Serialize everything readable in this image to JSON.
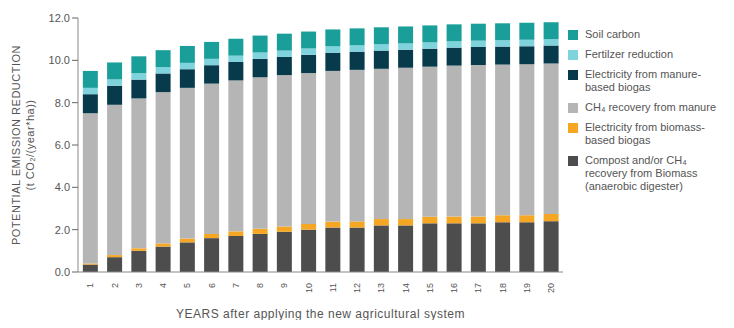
{
  "chart_data": {
    "type": "bar",
    "stacked": true,
    "grid": false,
    "legend": "right",
    "ylabel": [
      "POTENTIAL EMISSION REDUCTION",
      "(t CO₂/(year*ha))"
    ],
    "xlabel": "YEARS after applying the new agricultural system",
    "categories": [
      1,
      2,
      3,
      4,
      5,
      6,
      7,
      8,
      9,
      10,
      11,
      12,
      13,
      14,
      15,
      16,
      17,
      18,
      19,
      20
    ],
    "ylim": [
      0,
      12
    ],
    "yticks": [
      {
        "value": 0,
        "label": "0.0"
      },
      {
        "value": 2,
        "label": "2.0"
      },
      {
        "value": 4,
        "label": "4.0"
      },
      {
        "value": 6,
        "label": "6.0"
      },
      {
        "value": 8,
        "label": "8.0"
      },
      {
        "value": 10,
        "label": "10.0"
      },
      {
        "value": 12,
        "label": "12.0"
      }
    ],
    "series": [
      {
        "name": "Compost and/or CH₄ recovery from Biomass (anaerobic digester)",
        "color": "#4d4d4d",
        "values": [
          0.35,
          0.7,
          1.0,
          1.2,
          1.4,
          1.6,
          1.7,
          1.8,
          1.9,
          2.0,
          2.1,
          2.1,
          2.2,
          2.2,
          2.3,
          2.3,
          2.3,
          2.35,
          2.35,
          2.4
        ]
      },
      {
        "name": "Electricity from biomass-based biogas",
        "color": "#f5a623",
        "values": [
          0.05,
          0.1,
          0.12,
          0.15,
          0.18,
          0.2,
          0.22,
          0.24,
          0.25,
          0.27,
          0.28,
          0.29,
          0.3,
          0.3,
          0.31,
          0.32,
          0.32,
          0.33,
          0.33,
          0.34
        ]
      },
      {
        "name": "CH₄ recovery from manure",
        "color": "#b5b5b5",
        "values": [
          7.1,
          7.1,
          7.08,
          7.15,
          7.12,
          7.1,
          7.13,
          7.16,
          7.15,
          7.13,
          7.12,
          7.16,
          7.1,
          7.15,
          7.09,
          7.13,
          7.16,
          7.12,
          7.14,
          7.11
        ]
      },
      {
        "name": "Electricity from manure-based biogas",
        "color": "#073b4c",
        "values": [
          0.9,
          0.9,
          0.89,
          0.88,
          0.88,
          0.87,
          0.87,
          0.87,
          0.86,
          0.86,
          0.86,
          0.86,
          0.86,
          0.85,
          0.85,
          0.85,
          0.85,
          0.85,
          0.85,
          0.85
        ]
      },
      {
        "name": "Fertilzer reduction",
        "color": "#7fd3dc",
        "values": [
          0.3,
          0.3,
          0.3,
          0.3,
          0.3,
          0.3,
          0.3,
          0.3,
          0.3,
          0.3,
          0.3,
          0.3,
          0.3,
          0.3,
          0.3,
          0.3,
          0.3,
          0.3,
          0.3,
          0.3
        ]
      },
      {
        "name": "Soil carbon",
        "color": "#1a9e9a",
        "values": [
          0.8,
          0.8,
          0.8,
          0.8,
          0.8,
          0.8,
          0.8,
          0.8,
          0.8,
          0.8,
          0.8,
          0.8,
          0.8,
          0.8,
          0.8,
          0.8,
          0.8,
          0.8,
          0.8,
          0.8
        ]
      }
    ]
  }
}
